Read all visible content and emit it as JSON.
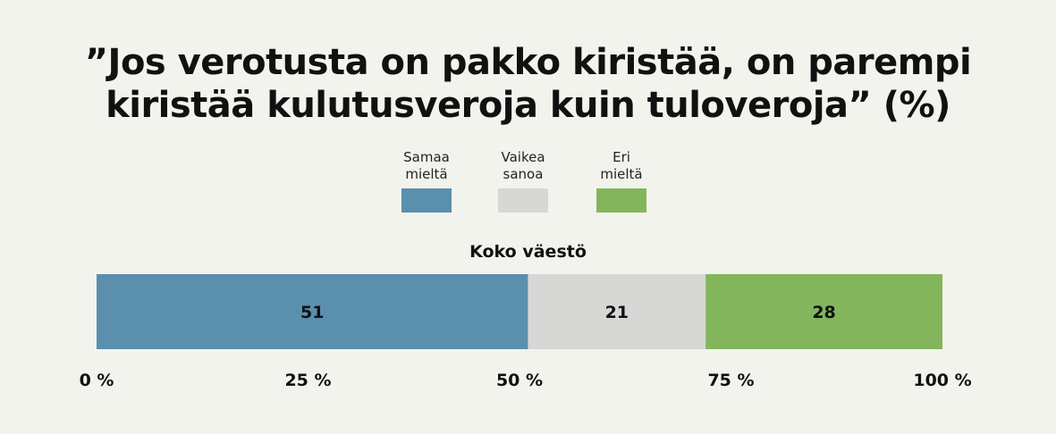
{
  "chart_data": {
    "type": "bar",
    "orientation": "horizontal-stacked",
    "title": "”Jos verotusta on pakko kiristää, on parempi kiristää kulutusveroja kuin tuloveroja” (%)",
    "title_lines": [
      "”Jos verotusta on pakko kiristää, on parempi",
      "kiristää kulutusveroja kuin tuloveroja” (%)"
    ],
    "categories": [
      "Koko väestö"
    ],
    "series": [
      {
        "name": "Samaa mieltä",
        "name_lines": [
          "Samaa",
          "mieltä"
        ],
        "color": "#5a8fae",
        "values": [
          51
        ]
      },
      {
        "name": "Vaikea sanoa",
        "name_lines": [
          "Vaikea",
          "sanoa"
        ],
        "color": "#d7d7d5",
        "values": [
          21
        ]
      },
      {
        "name": "Eri mieltä",
        "name_lines": [
          "Eri",
          "mieltä"
        ],
        "color": "#83b65c",
        "values": [
          28
        ]
      }
    ],
    "x_ticks": [
      0,
      25,
      50,
      75,
      100
    ],
    "x_tick_labels": [
      "0 %",
      "25 %",
      "50 %",
      "75 %",
      "100 %"
    ],
    "xlim": [
      0,
      100
    ],
    "legend_position": "top-center",
    "grid": false
  }
}
